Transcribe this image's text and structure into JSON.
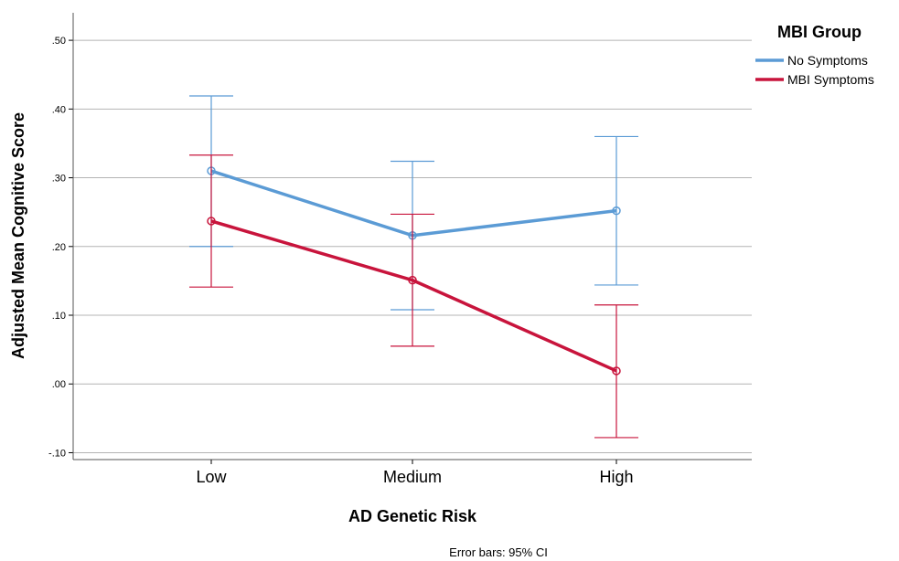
{
  "chart_data": {
    "type": "line",
    "xlabel": "AD Genetic Risk",
    "ylabel": "Adjusted Mean Cognitive Score",
    "categories": [
      "Low",
      "Medium",
      "High"
    ],
    "ylim": [
      -0.11,
      0.54
    ],
    "yticks": [
      {
        "value": 0.5,
        "label": ".50"
      },
      {
        "value": 0.4,
        "label": ".40"
      },
      {
        "value": 0.3,
        "label": ".30"
      },
      {
        "value": 0.2,
        "label": ".20"
      },
      {
        "value": 0.1,
        "label": ".10"
      },
      {
        "value": 0.0,
        "label": ".00"
      },
      {
        "value": -0.1,
        "label": "-.10"
      }
    ],
    "grid": true,
    "legend": {
      "title": "MBI Group",
      "placement": "top-right"
    },
    "series": [
      {
        "name": "No Symptoms",
        "color": "#5b9bd5",
        "values": [
          0.31,
          0.216,
          0.252
        ],
        "ci_lower": [
          0.2,
          0.108,
          0.144
        ],
        "ci_upper": [
          0.419,
          0.324,
          0.36
        ]
      },
      {
        "name": "MBI Symptoms",
        "color": "#c8143c",
        "values": [
          0.237,
          0.151,
          0.019
        ],
        "ci_lower": [
          0.141,
          0.055,
          -0.078
        ],
        "ci_upper": [
          0.333,
          0.247,
          0.115
        ]
      }
    ],
    "footnote": "Error bars: 95% CI"
  }
}
